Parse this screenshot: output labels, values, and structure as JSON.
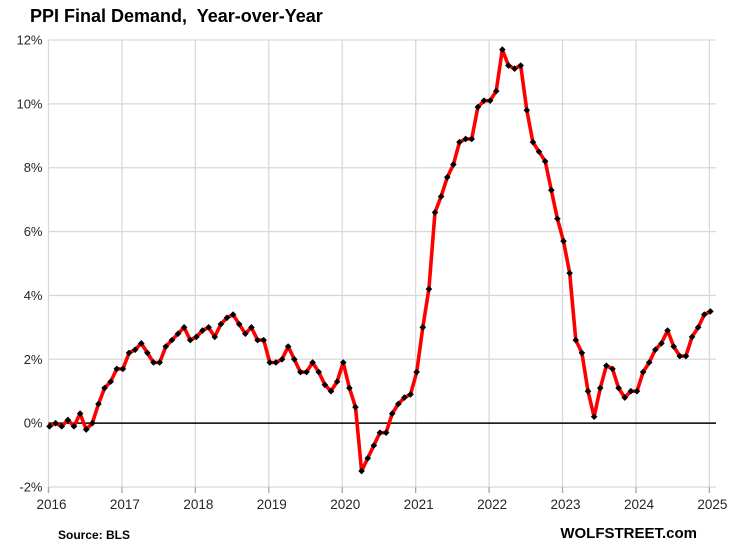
{
  "page": {
    "title": "PPI Final Demand,  Year-over-Year",
    "source_note": "Source: BLS",
    "branding": "WOLFSTREET.com"
  },
  "colors": {
    "background": "#FFFFFF",
    "line": "#FF0000",
    "marker": "#000000",
    "grid": "#D9D9D9",
    "zero_axis": "#000000",
    "tick": "#A6A6A6",
    "label": "#262626",
    "title": "#000000"
  },
  "chart_data": {
    "type": "line",
    "title": "PPI Final Demand,  Year-over-Year",
    "xlabel": "",
    "ylabel": "",
    "x_unit": "month",
    "x_start": "2016-01",
    "x_end": "2025-01",
    "x_tick_labels": [
      "2016",
      "2017",
      "2018",
      "2019",
      "2020",
      "2021",
      "2022",
      "2023",
      "2024",
      "2025"
    ],
    "y_ticks": [
      -2,
      0,
      2,
      4,
      6,
      8,
      10,
      12
    ],
    "y_tick_labels": [
      "-2%",
      "0%",
      "2%",
      "4%",
      "6%",
      "8%",
      "10%",
      "12%"
    ],
    "ylim": [
      -2,
      12
    ],
    "grid": true,
    "legend": "none",
    "annotations": [],
    "series": [
      {
        "name": "PPI Final Demand, Year-over-Year (%)",
        "color": "#FF0000",
        "marker": "diamond",
        "marker_color": "#000000",
        "values": [
          -0.1,
          0.0,
          -0.1,
          0.1,
          -0.1,
          0.3,
          -0.2,
          0.0,
          0.6,
          1.1,
          1.3,
          1.7,
          1.7,
          2.2,
          2.3,
          2.5,
          2.2,
          1.9,
          1.9,
          2.4,
          2.6,
          2.8,
          3.0,
          2.6,
          2.7,
          2.9,
          3.0,
          2.7,
          3.1,
          3.3,
          3.4,
          3.1,
          2.8,
          3.0,
          2.6,
          2.6,
          1.9,
          1.9,
          2.0,
          2.4,
          2.0,
          1.6,
          1.6,
          1.9,
          1.6,
          1.2,
          1.0,
          1.3,
          1.9,
          1.1,
          0.5,
          -1.5,
          -1.1,
          -0.7,
          -0.3,
          -0.3,
          0.3,
          0.6,
          0.8,
          0.9,
          1.6,
          3.0,
          4.2,
          6.6,
          7.1,
          7.7,
          8.1,
          8.8,
          8.9,
          8.9,
          9.9,
          10.1,
          10.1,
          10.4,
          11.7,
          11.2,
          11.1,
          11.2,
          9.8,
          8.8,
          8.5,
          8.2,
          7.3,
          6.4,
          5.7,
          4.7,
          2.6,
          2.2,
          1.0,
          0.2,
          1.1,
          1.8,
          1.7,
          1.1,
          0.8,
          1.0,
          1.0,
          1.6,
          1.9,
          2.3,
          2.5,
          2.9,
          2.4,
          2.1,
          2.1,
          2.7,
          3.0,
          3.4,
          3.5
        ]
      }
    ]
  }
}
